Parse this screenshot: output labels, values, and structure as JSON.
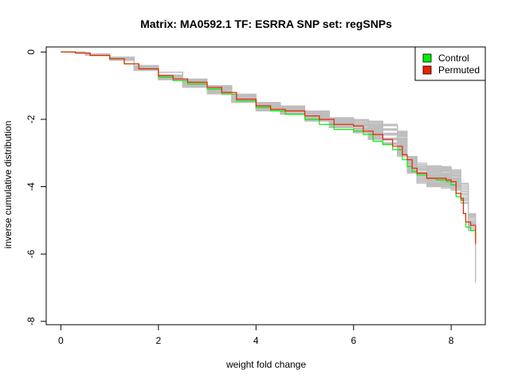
{
  "chart_data": {
    "type": "line",
    "title": "Matrix: MA0592.1 TF: ESRRA SNP set: regSNPs",
    "xlabel": "weight fold change",
    "ylabel": "inverse cumulative distribution",
    "xlim": [
      -0.3,
      8.7
    ],
    "ylim": [
      -8.1,
      0.15
    ],
    "xticks": [
      0,
      2,
      4,
      6,
      8
    ],
    "yticks": [
      0,
      -2,
      -4,
      -6,
      -8
    ],
    "xtick_labels": [
      "0",
      "2",
      "4",
      "6",
      "8"
    ],
    "ytick_labels": [
      "0",
      "-2",
      "-4",
      "-6",
      "-8"
    ],
    "legend": {
      "position": "top-right",
      "entries": [
        {
          "label": "Control",
          "color": "#00ee00"
        },
        {
          "label": "Permuted",
          "color": "#ee2200"
        }
      ]
    },
    "background_series_color": "#bebebe",
    "background_series_count": 60,
    "background_series_note": "gray envelope of many lines; value at each x lies between lower and upper",
    "envelope": {
      "x": [
        0,
        0.5,
        1.0,
        1.5,
        2.0,
        2.5,
        3.0,
        3.5,
        4.0,
        4.5,
        5.0,
        5.5,
        6.0,
        6.3,
        6.6,
        6.9,
        7.1,
        7.3,
        7.5,
        7.8,
        8.0,
        8.2,
        8.35,
        8.5
      ],
      "lower": [
        0,
        -0.1,
        -0.25,
        -0.55,
        -0.85,
        -1.05,
        -1.25,
        -1.5,
        -1.75,
        -1.85,
        -2.05,
        -2.25,
        -2.4,
        -2.6,
        -2.8,
        -3.1,
        -3.6,
        -3.9,
        -4.0,
        -4.05,
        -4.1,
        -4.5,
        -5.3,
        -6.85
      ],
      "upper": [
        0,
        -0.05,
        -0.15,
        -0.4,
        -0.6,
        -0.8,
        -1.0,
        -1.25,
        -1.5,
        -1.6,
        -1.75,
        -1.95,
        -2.0,
        -2.05,
        -2.1,
        -2.35,
        -3.1,
        -3.3,
        -3.35,
        -3.4,
        -3.5,
        -3.9,
        -4.8,
        -5.1
      ]
    },
    "series": [
      {
        "name": "Control",
        "color": "#00ee00",
        "x": [
          0,
          0.3,
          0.6,
          1.0,
          1.3,
          1.6,
          2.0,
          2.3,
          2.6,
          3.0,
          3.3,
          3.6,
          4.0,
          4.3,
          4.6,
          5.0,
          5.3,
          5.6,
          6.0,
          6.2,
          6.4,
          6.6,
          6.8,
          7.0,
          7.1,
          7.2,
          7.3,
          7.5,
          7.7,
          7.9,
          8.0,
          8.1,
          8.2,
          8.25,
          8.3,
          8.4,
          8.5
        ],
        "y": [
          0,
          -0.03,
          -0.1,
          -0.2,
          -0.35,
          -0.5,
          -0.75,
          -0.85,
          -0.95,
          -1.1,
          -1.25,
          -1.45,
          -1.65,
          -1.75,
          -1.85,
          -2.0,
          -2.15,
          -2.3,
          -2.35,
          -2.45,
          -2.65,
          -2.75,
          -2.9,
          -3.2,
          -3.4,
          -3.55,
          -3.65,
          -3.75,
          -3.8,
          -3.85,
          -3.95,
          -4.3,
          -4.4,
          -4.8,
          -5.2,
          -5.3,
          -5.6
        ]
      },
      {
        "name": "Permuted",
        "color": "#ee2200",
        "x": [
          0,
          0.3,
          0.6,
          1.0,
          1.3,
          1.6,
          2.0,
          2.3,
          2.6,
          3.0,
          3.3,
          3.6,
          4.0,
          4.3,
          4.6,
          5.0,
          5.3,
          5.6,
          5.8,
          6.0,
          6.2,
          6.4,
          6.6,
          6.8,
          7.0,
          7.1,
          7.2,
          7.3,
          7.5,
          7.7,
          7.9,
          8.0,
          8.1,
          8.2,
          8.25,
          8.3,
          8.4,
          8.5
        ],
        "y": [
          0,
          -0.03,
          -0.1,
          -0.2,
          -0.35,
          -0.5,
          -0.7,
          -0.8,
          -0.9,
          -1.05,
          -1.2,
          -1.4,
          -1.6,
          -1.7,
          -1.75,
          -1.9,
          -2.0,
          -2.15,
          -2.15,
          -2.2,
          -2.35,
          -2.45,
          -2.6,
          -2.8,
          -3.05,
          -3.2,
          -3.45,
          -3.6,
          -3.75,
          -3.75,
          -3.8,
          -3.85,
          -4.2,
          -4.35,
          -4.8,
          -5.05,
          -5.15,
          -5.7
        ]
      }
    ]
  }
}
